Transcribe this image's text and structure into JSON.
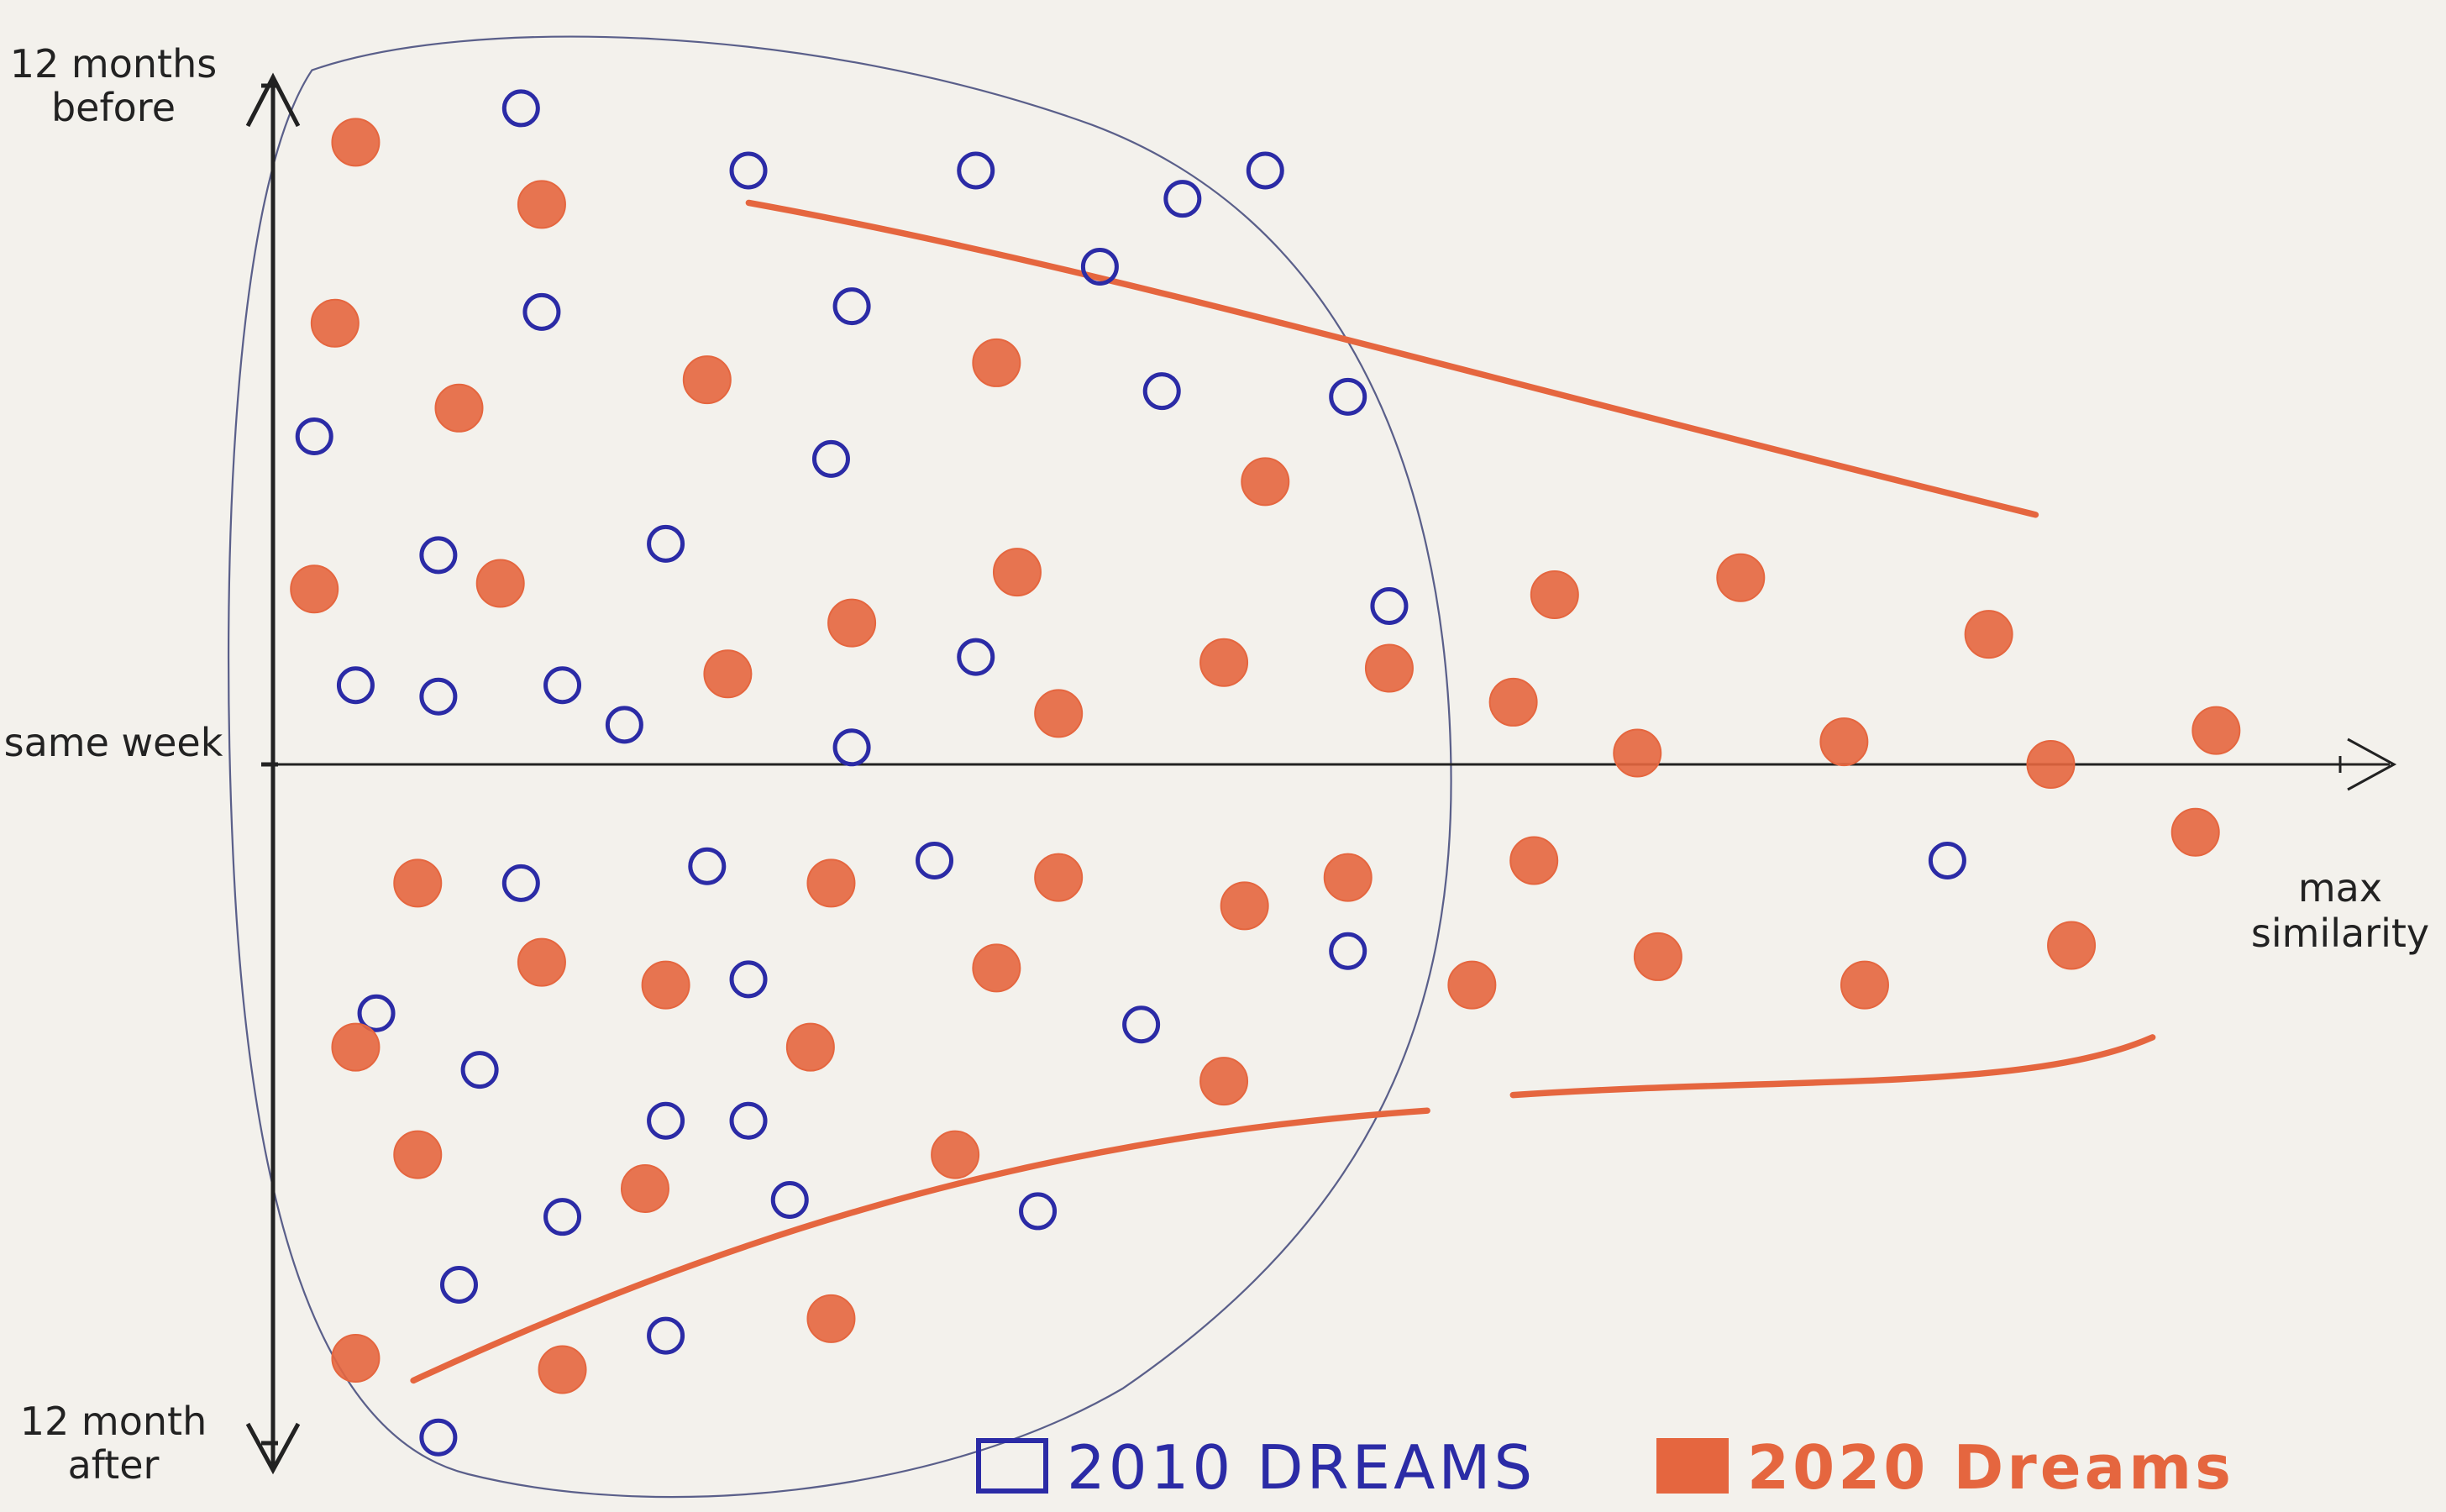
{
  "chart_data": {
    "type": "scatter",
    "xlim": [
      0,
      1
    ],
    "ylim": [
      -12,
      12
    ],
    "xticks": [
      {
        "value": 1,
        "label": "max similarity"
      }
    ],
    "yticks": [
      {
        "value": 12,
        "label": "12 months before"
      },
      {
        "value": 0,
        "label": "same week"
      },
      {
        "value": -12,
        "label": "12 month after"
      }
    ],
    "legend": "bottom",
    "series": [
      {
        "name": "2010 DREAMS",
        "color": "#2b2ba6",
        "x": [
          0.12,
          0.23,
          0.34,
          0.44,
          0.48,
          0.13,
          0.28,
          0.4,
          0.43,
          0.52,
          0.02,
          0.27,
          0.19,
          0.08,
          0.54,
          0.04,
          0.08,
          0.14,
          0.17,
          0.34,
          0.28,
          0.21,
          0.12,
          0.32,
          0.52,
          0.23,
          0.05,
          0.1,
          0.42,
          0.19,
          0.23,
          0.14,
          0.25,
          0.37,
          0.09,
          0.19,
          0.81,
          0.08
        ],
        "values": [
          11.6,
          10.5,
          10.5,
          10.0,
          10.5,
          8.0,
          8.1,
          8.8,
          6.6,
          6.5,
          5.8,
          5.4,
          3.9,
          3.7,
          2.8,
          1.4,
          1.2,
          1.4,
          0.7,
          1.9,
          0.3,
          -1.8,
          -2.1,
          -1.7,
          -3.3,
          -3.8,
          -4.4,
          -5.4,
          -4.6,
          -6.3,
          -6.3,
          -8.0,
          -7.7,
          -7.9,
          -9.2,
          -10.1,
          -1.7,
          -11.9
        ]
      },
      {
        "name": "2020 Dreams",
        "color": "#e5663f",
        "x": [
          0.04,
          0.13,
          0.03,
          0.09,
          0.21,
          0.35,
          0.48,
          0.02,
          0.11,
          0.28,
          0.36,
          0.22,
          0.38,
          0.46,
          0.54,
          0.6,
          0.62,
          0.71,
          0.83,
          0.66,
          0.76,
          0.86,
          0.94,
          0.93,
          0.07,
          0.27,
          0.38,
          0.47,
          0.52,
          0.61,
          0.13,
          0.19,
          0.35,
          0.26,
          0.58,
          0.67,
          0.77,
          0.87,
          0.04,
          0.46,
          0.07,
          0.18,
          0.33,
          0.27,
          0.14,
          0.04
        ],
        "values": [
          11.0,
          9.9,
          7.8,
          6.3,
          6.8,
          7.1,
          5.0,
          3.1,
          3.2,
          2.5,
          3.4,
          1.6,
          0.9,
          1.8,
          1.7,
          1.1,
          3.0,
          3.3,
          2.3,
          0.2,
          0.4,
          0.0,
          0.6,
          -1.2,
          -2.1,
          -2.1,
          -2.0,
          -2.5,
          -2.0,
          -1.7,
          -3.5,
          -3.9,
          -3.6,
          -5.0,
          -3.9,
          -3.4,
          -3.9,
          -3.2,
          -5.0,
          -5.6,
          -6.9,
          -7.5,
          -6.9,
          -9.8,
          -10.7,
          -10.5
        ]
      }
    ]
  }
}
